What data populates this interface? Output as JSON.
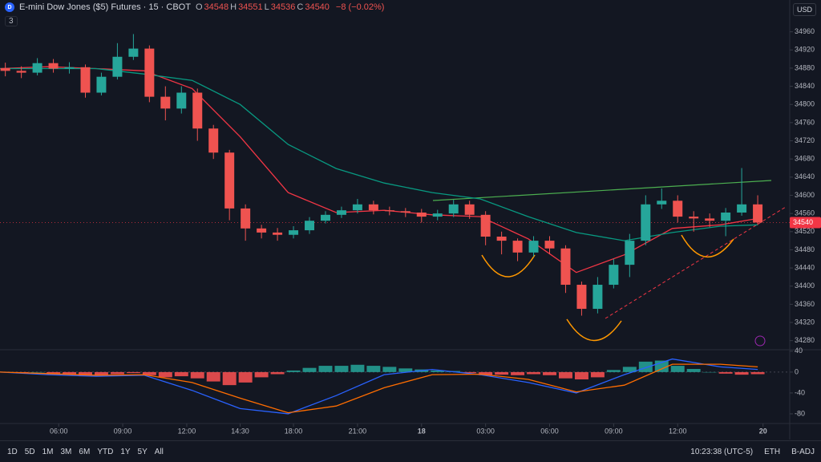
{
  "header": {
    "badge": "D",
    "title": "E-mini Dow Jones ($5) Futures · 15 · CBOT",
    "ohlc": [
      {
        "key": "O",
        "value": 34548
      },
      {
        "key": "H",
        "value": 34551
      },
      {
        "key": "L",
        "value": 34536
      },
      {
        "key": "C",
        "value": 34540
      }
    ],
    "change": "−8 (−0.02%)",
    "indicators": "3",
    "currency": "USD"
  },
  "toolbar": {
    "timeframes": [
      "1D",
      "5D",
      "1M",
      "3M",
      "6M",
      "YTD",
      "1Y",
      "5Y",
      "All"
    ],
    "clock": "10:23:38 (UTC-5)",
    "session": "ETH",
    "adjustment": "B-ADJ"
  },
  "chart_data": [
    {
      "type": "candlestick",
      "up_color": "#26a69a",
      "down_color": "#ef5350",
      "last_price": 34540,
      "last_price_color": "#f23645",
      "xlim": [
        0,
        148
      ],
      "xticks": [
        {
          "value": 11,
          "label": "06:00"
        },
        {
          "value": 23,
          "label": "09:00"
        },
        {
          "value": 35,
          "label": "12:00"
        },
        {
          "value": 45,
          "label": "14:30"
        },
        {
          "value": 55,
          "label": "18:00"
        },
        {
          "value": 67,
          "label": "21:00"
        },
        {
          "value": 79,
          "label": "18"
        },
        {
          "value": 91,
          "label": "03:00"
        },
        {
          "value": 103,
          "label": "06:00"
        },
        {
          "value": 115,
          "label": "09:00"
        },
        {
          "value": 127,
          "label": "12:00"
        },
        {
          "value": 143,
          "label": "20"
        }
      ],
      "ylim": [
        34260,
        35030
      ],
      "yticks": [
        34960,
        34920,
        34880,
        34840,
        34800,
        34760,
        34720,
        34680,
        34640,
        34600,
        34560,
        34520,
        34480,
        34440,
        34400,
        34360,
        34320,
        34280
      ],
      "x": [
        1,
        4,
        7,
        10,
        13,
        16,
        19,
        22,
        25,
        28,
        31,
        34,
        37,
        40,
        43,
        46,
        49,
        52,
        55,
        58,
        61,
        64,
        67,
        70,
        73,
        76,
        79,
        82,
        85,
        88,
        91,
        94,
        97,
        100,
        103,
        106,
        109,
        112,
        115,
        118,
        121,
        124,
        127,
        130,
        133,
        136,
        139,
        142
      ],
      "open": [
        34880,
        34874,
        34870,
        34891,
        34879,
        34882,
        34826,
        34861,
        34905,
        34923,
        34817,
        34791,
        34826,
        34747,
        34694,
        34571,
        34527,
        34518,
        34513,
        34523,
        34544,
        34557,
        34567,
        34580,
        34567,
        34565,
        34562,
        34553,
        34560,
        34580,
        34557,
        34509,
        34500,
        34474,
        34500,
        34483,
        34403,
        34350,
        34403,
        34447,
        34500,
        34580,
        34588,
        34553,
        34549,
        34544,
        34562,
        34580
      ],
      "high": [
        34892,
        34884,
        34902,
        34900,
        34893,
        34888,
        34870,
        34935,
        34955,
        34930,
        34840,
        34840,
        34835,
        34755,
        34700,
        34580,
        34535,
        34528,
        34532,
        34552,
        34565,
        34575,
        34592,
        34588,
        34575,
        34572,
        34570,
        34568,
        34590,
        34588,
        34565,
        34520,
        34505,
        34510,
        34510,
        34490,
        34410,
        34420,
        34460,
        34515,
        34600,
        34615,
        34600,
        34565,
        34560,
        34572,
        34660,
        34600
      ],
      "low": [
        34862,
        34858,
        34864,
        34870,
        34868,
        34815,
        34820,
        34855,
        34898,
        34805,
        34765,
        34780,
        34720,
        34680,
        34545,
        34500,
        34505,
        34500,
        34505,
        34515,
        34538,
        34550,
        34560,
        34558,
        34556,
        34552,
        34540,
        34545,
        34552,
        34548,
        34490,
        34470,
        34455,
        34465,
        34470,
        34385,
        34335,
        34340,
        34395,
        34420,
        34490,
        34570,
        34540,
        34520,
        34530,
        34510,
        34555,
        34535
      ],
      "close": [
        34874,
        34870,
        34891,
        34879,
        34882,
        34826,
        34861,
        34905,
        34923,
        34817,
        34791,
        34826,
        34747,
        34694,
        34571,
        34527,
        34518,
        34513,
        34523,
        34544,
        34557,
        34567,
        34580,
        34567,
        34565,
        34562,
        34553,
        34560,
        34580,
        34557,
        34509,
        34500,
        34474,
        34500,
        34483,
        34403,
        34350,
        34403,
        34447,
        34500,
        34580,
        34588,
        34553,
        34549,
        34544,
        34562,
        34580,
        34540
      ],
      "overlays": [
        {
          "color": "#f23645",
          "x": [
            0,
            9,
            18,
            27,
            36,
            45,
            54,
            63,
            72,
            81,
            90,
            99,
            108,
            117,
            126,
            135,
            142
          ],
          "values": [
            34879,
            34883,
            34879,
            34874,
            34835,
            34729,
            34606,
            34562,
            34567,
            34557,
            34553,
            34504,
            34430,
            34469,
            34527,
            34535,
            34549
          ]
        },
        {
          "color": "#089981",
          "x": [
            0,
            9,
            18,
            27,
            36,
            45,
            54,
            63,
            72,
            81,
            90,
            99,
            108,
            117,
            126,
            135,
            142
          ],
          "values": [
            34879,
            34879,
            34879,
            34867,
            34853,
            34800,
            34712,
            34659,
            34627,
            34606,
            34592,
            34553,
            34518,
            34500,
            34518,
            34532,
            34535
          ]
        }
      ]
    },
    {
      "type": "macd",
      "positive_color": "#26a69a",
      "negative_color": "#ff5252",
      "ylim": [
        -97,
        49
      ],
      "yticks": [
        40,
        0,
        -40,
        -80
      ],
      "histogram": {
        "x": [
          1,
          4,
          7,
          10,
          13,
          16,
          19,
          22,
          25,
          28,
          31,
          34,
          37,
          40,
          43,
          46,
          49,
          52,
          55,
          58,
          61,
          64,
          67,
          70,
          73,
          76,
          79,
          82,
          85,
          88,
          91,
          94,
          97,
          100,
          103,
          106,
          109,
          112,
          115,
          118,
          121,
          124,
          127,
          130,
          133,
          136,
          139,
          142
        ],
        "values": [
          0,
          -2,
          0,
          -3,
          -5,
          -8,
          -7,
          -4,
          -2,
          -6,
          -10,
          -8,
          -12,
          -18,
          -25,
          -20,
          -10,
          -4,
          3,
          8,
          12,
          12,
          14,
          12,
          10,
          7,
          5,
          3,
          2,
          -2,
          -6,
          -5,
          -6,
          -4,
          -6,
          -12,
          -14,
          -10,
          4,
          10,
          20,
          22,
          12,
          6,
          0,
          -3,
          -5,
          -4
        ]
      },
      "lines": [
        {
          "color": "#2962ff",
          "x": [
            0,
            9,
            18,
            27,
            36,
            45,
            54,
            63,
            72,
            81,
            90,
            99,
            108,
            117,
            126,
            135,
            142
          ],
          "values": [
            0,
            -5,
            -8,
            -6,
            -35,
            -70,
            -80,
            -45,
            -5,
            5,
            -5,
            -20,
            -40,
            -5,
            25,
            10,
            5
          ]
        },
        {
          "color": "#ff6d00",
          "x": [
            0,
            9,
            18,
            27,
            36,
            45,
            54,
            63,
            72,
            81,
            90,
            99,
            108,
            117,
            126,
            135,
            142
          ],
          "values": [
            0,
            -3,
            -6,
            -5,
            -20,
            -50,
            -78,
            -65,
            -30,
            -5,
            -4,
            -14,
            -38,
            -25,
            15,
            15,
            10
          ]
        }
      ]
    }
  ]
}
